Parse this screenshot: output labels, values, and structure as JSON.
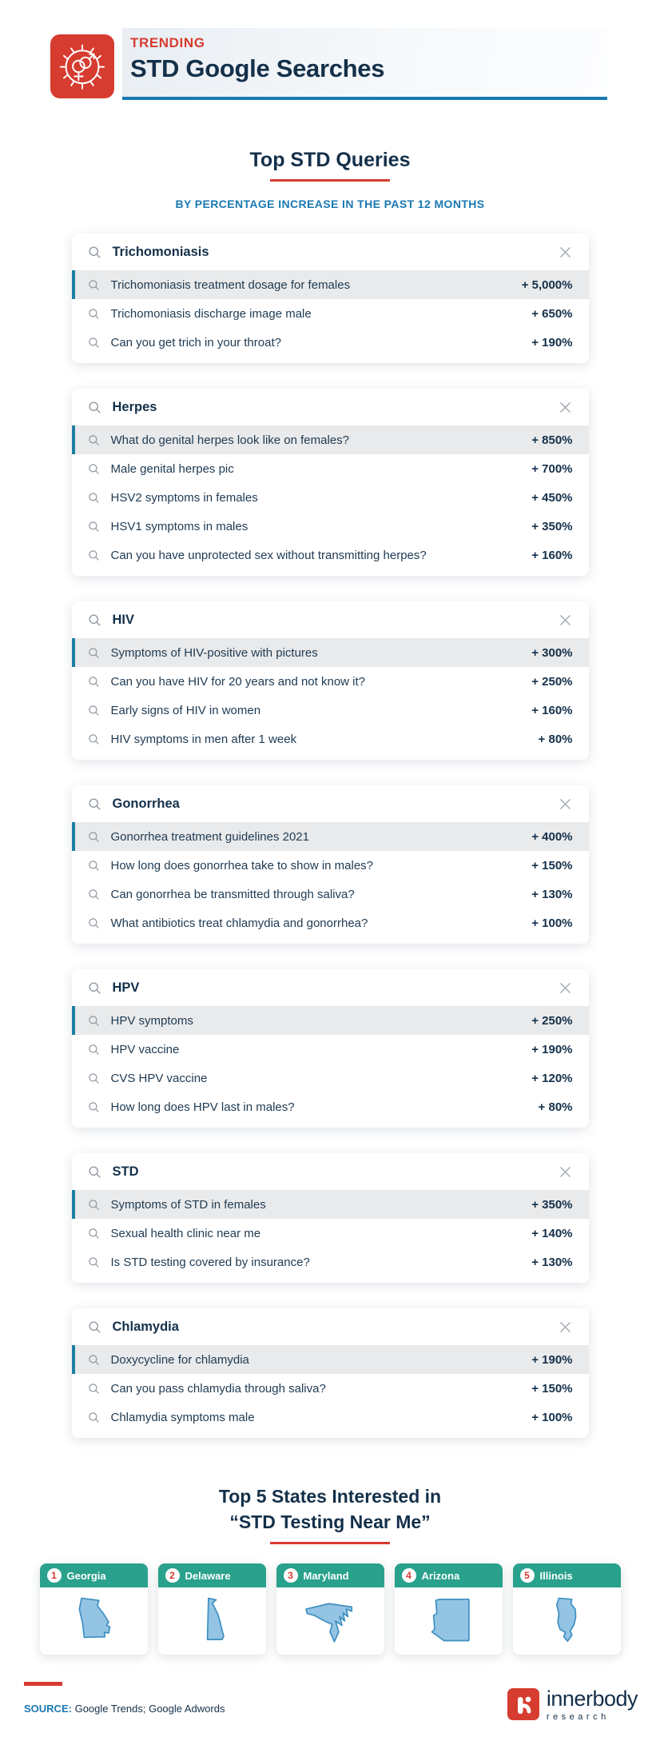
{
  "header": {
    "kicker": "TRENDING",
    "title": "STD Google Searches",
    "icon": "std-virus-icon"
  },
  "section_queries": {
    "title": "Top STD Queries",
    "subtitle": "BY PERCENTAGE INCREASE IN THE PAST 12 MONTHS"
  },
  "cards": [
    {
      "term": "Trichomoniasis",
      "rows": [
        {
          "q": "Trichomoniasis treatment dosage for females",
          "v": "+ 5,000%"
        },
        {
          "q": "Trichomoniasis discharge image male",
          "v": "+ 650%"
        },
        {
          "q": "Can you get trich in your throat?",
          "v": "+ 190%"
        }
      ]
    },
    {
      "term": "Herpes",
      "rows": [
        {
          "q": "What do genital herpes look like on females?",
          "v": "+ 850%"
        },
        {
          "q": "Male genital herpes pic",
          "v": "+ 700%"
        },
        {
          "q": "HSV2 symptoms in females",
          "v": "+ 450%"
        },
        {
          "q": "HSV1 symptoms in males",
          "v": "+ 350%"
        },
        {
          "q": "Can you have unprotected sex without transmitting herpes?",
          "v": "+ 160%"
        }
      ]
    },
    {
      "term": "HIV",
      "rows": [
        {
          "q": "Symptoms of HIV-positive with pictures",
          "v": "+ 300%"
        },
        {
          "q": "Can you have HIV for 20 years and not know it?",
          "v": "+ 250%"
        },
        {
          "q": "Early signs of HIV in women",
          "v": "+ 160%"
        },
        {
          "q": "HIV symptoms in men after 1 week",
          "v": "+ 80%"
        }
      ]
    },
    {
      "term": "Gonorrhea",
      "rows": [
        {
          "q": "Gonorrhea treatment guidelines 2021",
          "v": "+ 400%"
        },
        {
          "q": "How long does gonorrhea take to show in males?",
          "v": "+ 150%"
        },
        {
          "q": "Can gonorrhea be transmitted through saliva?",
          "v": "+ 130%"
        },
        {
          "q": "What antibiotics treat chlamydia and gonorrhea?",
          "v": "+ 100%"
        }
      ]
    },
    {
      "term": "HPV",
      "rows": [
        {
          "q": "HPV symptoms",
          "v": "+ 250%"
        },
        {
          "q": "HPV vaccine",
          "v": "+ 190%"
        },
        {
          "q": "CVS HPV vaccine",
          "v": "+ 120%"
        },
        {
          "q": "How long does HPV last in males?",
          "v": "+ 80%"
        }
      ]
    },
    {
      "term": "STD",
      "rows": [
        {
          "q": "Symptoms of STD in females",
          "v": "+ 350%"
        },
        {
          "q": "Sexual health clinic near me",
          "v": "+ 140%"
        },
        {
          "q": "Is STD testing covered by insurance?",
          "v": "+ 130%"
        }
      ]
    },
    {
      "term": "Chlamydia",
      "rows": [
        {
          "q": "Doxycycline for chlamydia",
          "v": "+ 190%"
        },
        {
          "q": "Can you pass chlamydia through saliva?",
          "v": "+ 150%"
        },
        {
          "q": "Chlamydia symptoms male",
          "v": "+ 100%"
        }
      ]
    }
  ],
  "section_states": {
    "title_line1": "Top 5 States Interested in",
    "title_line2": "“STD Testing Near Me”"
  },
  "states": [
    {
      "rank": "1",
      "name": "Georgia",
      "shape": "georgia-outline"
    },
    {
      "rank": "2",
      "name": "Delaware",
      "shape": "delaware-outline"
    },
    {
      "rank": "3",
      "name": "Maryland",
      "shape": "maryland-outline"
    },
    {
      "rank": "4",
      "name": "Arizona",
      "shape": "arizona-outline"
    },
    {
      "rank": "5",
      "name": "Illinois",
      "shape": "illinois-outline"
    }
  ],
  "footer": {
    "source_label": "SOURCE:",
    "source_text": "Google Trends; Google Adwords",
    "logo_name": "innerbody",
    "logo_sub": "research"
  },
  "theme": {
    "navy": "#14304a",
    "text-navy": "#1e3a52",
    "accent-red": "#d63c2f",
    "blue": "#1a79b2",
    "teal": "#2aa18c",
    "hl-bg": "#e9eaeb",
    "hl-bar": "#1f7fa2",
    "icon-gray": "#8d959d",
    "state-fill": "#94c4e4",
    "state-stroke": "#3e8fc0"
  },
  "chart_data": [
    {
      "type": "table",
      "title": "Trichomoniasis",
      "columns": [
        "query",
        "increase_pct"
      ],
      "rows": [
        [
          "Trichomoniasis treatment dosage for females",
          5000
        ],
        [
          "Trichomoniasis discharge image male",
          650
        ],
        [
          "Can you get trich in your throat?",
          190
        ]
      ]
    },
    {
      "type": "table",
      "title": "Herpes",
      "columns": [
        "query",
        "increase_pct"
      ],
      "rows": [
        [
          "What do genital herpes look like on females?",
          850
        ],
        [
          "Male genital herpes pic",
          700
        ],
        [
          "HSV2 symptoms in females",
          450
        ],
        [
          "HSV1 symptoms in males",
          350
        ],
        [
          "Can you have unprotected sex without transmitting herpes?",
          160
        ]
      ]
    },
    {
      "type": "table",
      "title": "HIV",
      "columns": [
        "query",
        "increase_pct"
      ],
      "rows": [
        [
          "Symptoms of HIV-positive with pictures",
          300
        ],
        [
          "Can you have HIV for 20 years and not know it?",
          250
        ],
        [
          "Early signs of HIV in women",
          160
        ],
        [
          "HIV symptoms in men after 1 week",
          80
        ]
      ]
    },
    {
      "type": "table",
      "title": "Gonorrhea",
      "columns": [
        "query",
        "increase_pct"
      ],
      "rows": [
        [
          "Gonorrhea treatment guidelines 2021",
          400
        ],
        [
          "How long does gonorrhea take to show in males?",
          150
        ],
        [
          "Can gonorrhea be transmitted through saliva?",
          130
        ],
        [
          "What antibiotics treat chlamydia and gonorrhea?",
          100
        ]
      ]
    },
    {
      "type": "table",
      "title": "HPV",
      "columns": [
        "query",
        "increase_pct"
      ],
      "rows": [
        [
          "HPV symptoms",
          250
        ],
        [
          "HPV vaccine",
          190
        ],
        [
          "CVS HPV vaccine",
          120
        ],
        [
          "How long does HPV last in males?",
          80
        ]
      ]
    },
    {
      "type": "table",
      "title": "STD",
      "columns": [
        "query",
        "increase_pct"
      ],
      "rows": [
        [
          "Symptoms of STD in females",
          350
        ],
        [
          "Sexual health clinic near me",
          140
        ],
        [
          "Is STD testing covered by insurance?",
          130
        ]
      ]
    },
    {
      "type": "table",
      "title": "Chlamydia",
      "columns": [
        "query",
        "increase_pct"
      ],
      "rows": [
        [
          "Doxycycline for chlamydia",
          190
        ],
        [
          "Can you pass chlamydia through saliva?",
          150
        ],
        [
          "Chlamydia symptoms male",
          100
        ]
      ]
    },
    {
      "type": "table",
      "title": "Top 5 States Interested in “STD Testing Near Me”",
      "columns": [
        "rank",
        "state"
      ],
      "rows": [
        [
          1,
          "Georgia"
        ],
        [
          2,
          "Delaware"
        ],
        [
          3,
          "Maryland"
        ],
        [
          4,
          "Arizona"
        ],
        [
          5,
          "Illinois"
        ]
      ]
    }
  ]
}
